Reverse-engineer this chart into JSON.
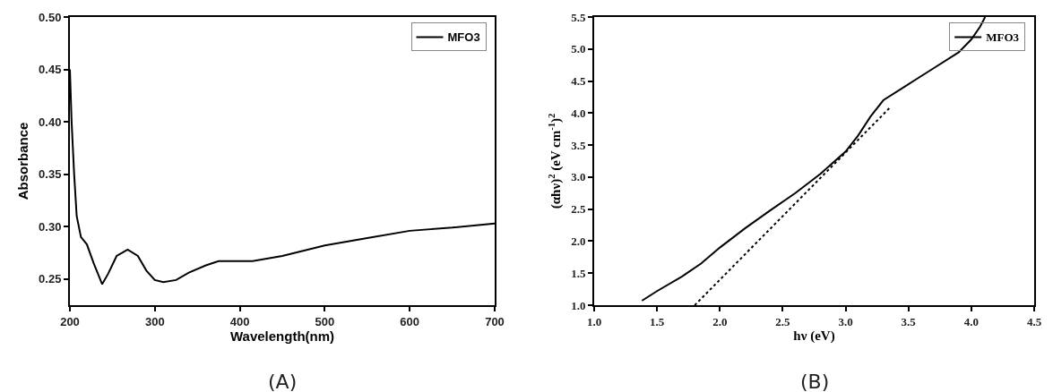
{
  "chart_data": [
    {
      "type": "line",
      "xlabel": "Wavelength(nm)",
      "ylabel": "Absorbance",
      "annotations": [
        "(A)"
      ],
      "series": [
        {
          "name": "MFO3",
          "color": "#000000",
          "x": [
            200,
            202,
            205,
            208,
            213,
            220,
            228,
            238,
            245,
            255,
            268,
            280,
            290,
            300,
            310,
            325,
            340,
            360,
            375,
            400,
            415,
            450,
            500,
            550,
            600,
            650,
            700
          ],
          "values": [
            0.45,
            0.4,
            0.35,
            0.31,
            0.29,
            0.283,
            0.265,
            0.245,
            0.255,
            0.272,
            0.278,
            0.272,
            0.258,
            0.249,
            0.247,
            0.249,
            0.256,
            0.263,
            0.267,
            0.267,
            0.267,
            0.272,
            0.282,
            0.289,
            0.296,
            0.299,
            0.303
          ]
        }
      ],
      "xlim": [
        200,
        700
      ],
      "xticks": [
        200,
        300,
        400,
        500,
        600,
        700
      ],
      "ylim": [
        0.225,
        0.5
      ],
      "yticks": [
        {
          "value": 0.25,
          "label": "0.25"
        },
        {
          "value": 0.3,
          "label": "0.30"
        },
        {
          "value": 0.35,
          "label": "0.35"
        },
        {
          "value": 0.4,
          "label": "0.40"
        },
        {
          "value": 0.45,
          "label": "0.45"
        },
        {
          "value": 0.5,
          "label": "0.50"
        }
      ],
      "grid": false,
      "legend": "top right",
      "marker": "none",
      "line_style": "solid"
    },
    {
      "type": "line",
      "xlabel": "hν (eV)",
      "ylabel": "(αhν)$^{2}$ (eV cm$^{-1}$)$^{2}$",
      "annotations": [
        "(B)"
      ],
      "series": [
        {
          "name": "MFO3",
          "color": "#000000",
          "x": [
            1.38,
            1.5,
            1.7,
            1.85,
            2.0,
            2.2,
            2.4,
            2.6,
            2.8,
            3.0,
            3.1,
            3.2,
            3.3,
            3.5,
            3.7,
            3.9,
            4.0,
            4.07,
            4.11
          ],
          "values": [
            1.07,
            1.22,
            1.45,
            1.65,
            1.9,
            2.2,
            2.48,
            2.75,
            3.05,
            3.4,
            3.65,
            3.95,
            4.2,
            4.45,
            4.7,
            4.95,
            5.15,
            5.35,
            5.5
          ]
        },
        {
          "type": "line",
          "color": "#000000",
          "line_style": "dotted",
          "x": [
            1.8,
            3.35
          ],
          "values": [
            1.0,
            4.08
          ]
        }
      ],
      "xlim": [
        1.0,
        4.5
      ],
      "xticks": [
        {
          "value": 1,
          "label": "1.0"
        },
        {
          "value": 1.5,
          "label": "1.5"
        },
        {
          "value": 2,
          "label": "2.0"
        },
        {
          "value": 2.5,
          "label": "2.5"
        },
        {
          "value": 3,
          "label": "3.0"
        },
        {
          "value": 3.5,
          "label": "3.5"
        },
        {
          "value": 4,
          "label": "4.0"
        },
        {
          "value": 4.5,
          "label": "4.5"
        }
      ],
      "ylim": [
        1.0,
        5.5
      ],
      "yticks": [
        {
          "value": 1,
          "label": "1.0"
        },
        {
          "value": 1.5,
          "label": "1.5"
        },
        {
          "value": 2,
          "label": "2.0"
        },
        {
          "value": 2.5,
          "label": "2.5"
        },
        {
          "value": 3,
          "label": "3.0"
        },
        {
          "value": 3.5,
          "label": "3.5"
        },
        {
          "value": 4,
          "label": "4.0"
        },
        {
          "value": 4.5,
          "label": "4.5"
        },
        {
          "value": 5,
          "label": "5.0"
        },
        {
          "value": 5.5,
          "label": "5.5"
        }
      ],
      "grid": false,
      "legend": "top right",
      "marker": "none",
      "line_style": "solid"
    }
  ]
}
